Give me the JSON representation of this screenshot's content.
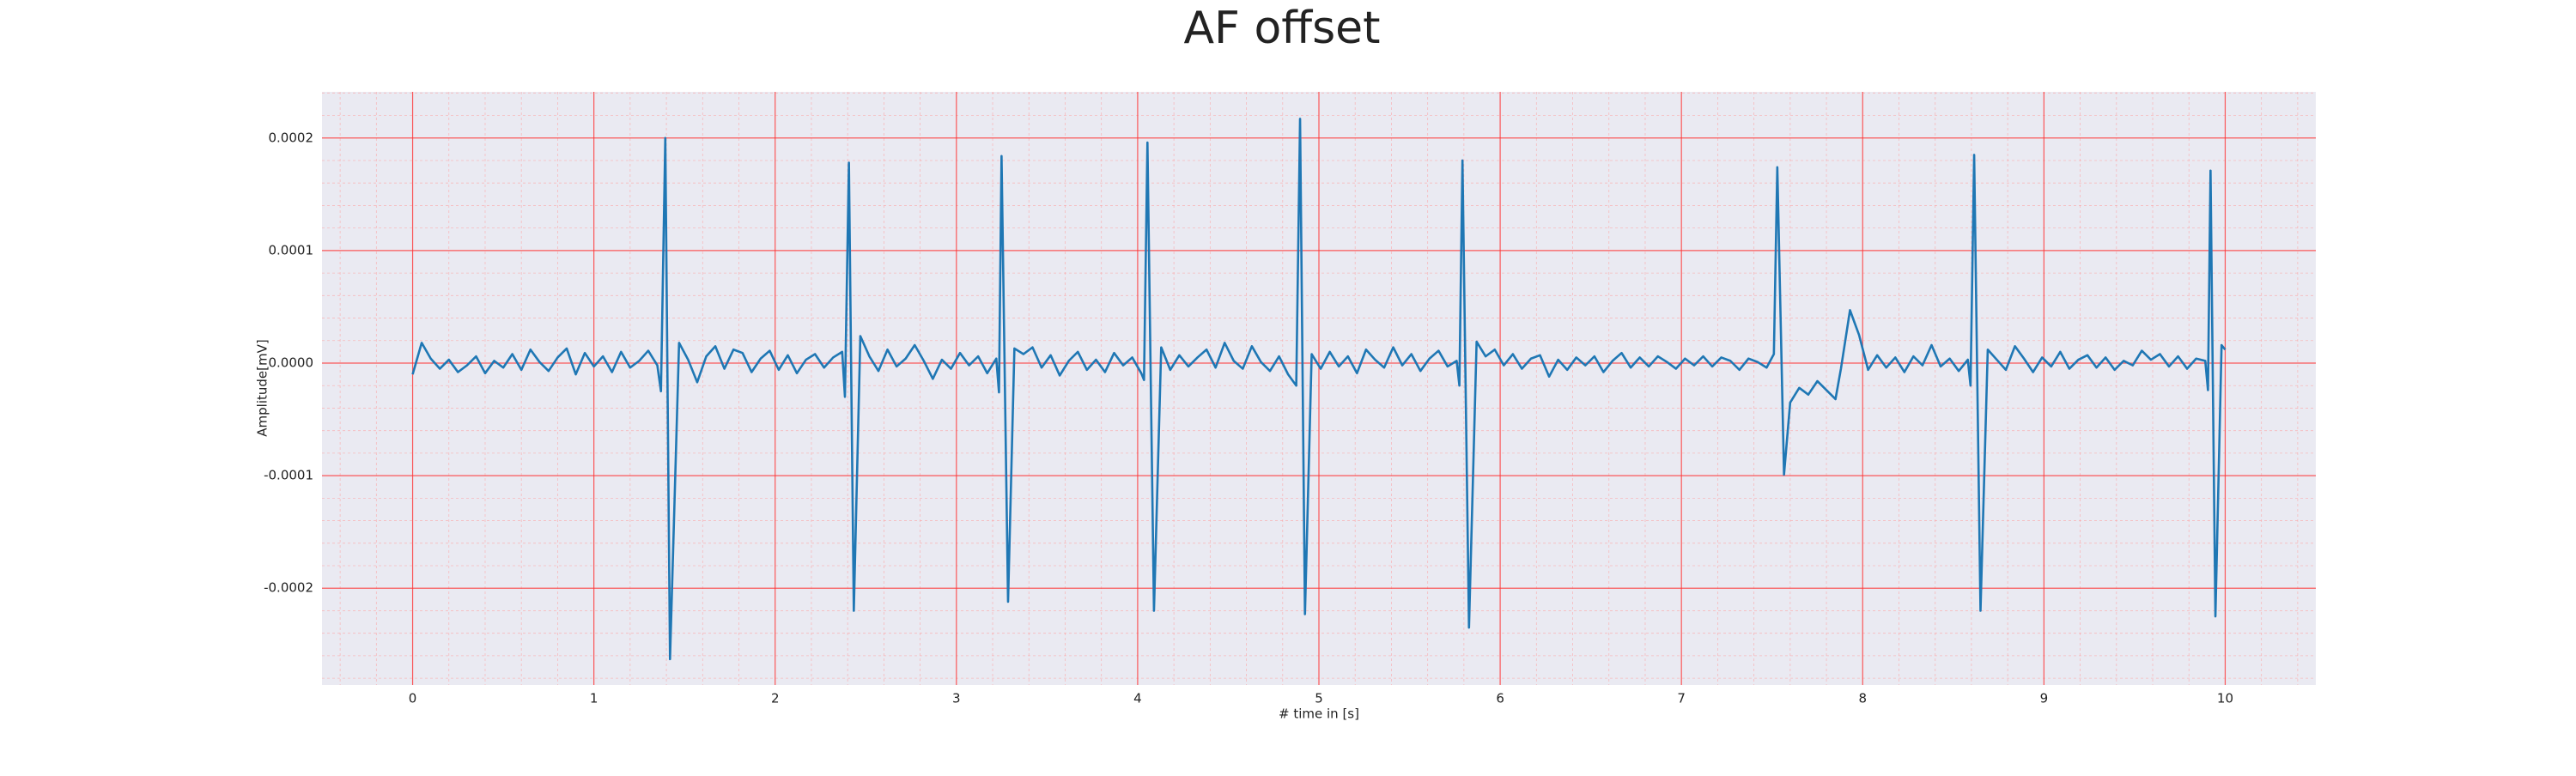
{
  "chart_data": {
    "type": "line",
    "title": "AF offset",
    "xlabel": "# time in [s]",
    "ylabel": "Amplitude[mV]",
    "color": "#1f77b4",
    "grid": true,
    "xlim": [
      -0.5,
      10.5
    ],
    "xticks": [
      0,
      1,
      2,
      3,
      4,
      5,
      6,
      7,
      8,
      9,
      10
    ],
    "ylim": [
      -0.000286,
      0.000241
    ],
    "yticks": [
      0.0002,
      0.0001,
      {
        "value": 0,
        "label": "0.0000"
      },
      -0.0001,
      -0.0002
    ],
    "x": [
      0.0,
      0.05,
      0.1,
      0.15,
      0.2,
      0.25,
      0.3,
      0.35,
      0.4,
      0.45,
      0.5,
      0.55,
      0.6,
      0.65,
      0.7,
      0.75,
      0.8,
      0.85,
      0.9,
      0.95,
      1.0,
      1.05,
      1.1,
      1.15,
      1.2,
      1.25,
      1.3,
      1.35,
      1.37,
      1.394,
      1.42,
      1.47,
      1.52,
      1.57,
      1.62,
      1.67,
      1.72,
      1.77,
      1.82,
      1.87,
      1.92,
      1.97,
      2.02,
      2.07,
      2.12,
      2.17,
      2.22,
      2.27,
      2.32,
      2.37,
      2.385,
      2.407,
      2.434,
      2.47,
      2.52,
      2.57,
      2.62,
      2.67,
      2.72,
      2.77,
      2.82,
      2.87,
      2.92,
      2.97,
      3.02,
      3.07,
      3.12,
      3.17,
      3.22,
      3.235,
      3.249,
      3.285,
      3.32,
      3.37,
      3.42,
      3.47,
      3.52,
      3.57,
      3.62,
      3.67,
      3.72,
      3.77,
      3.82,
      3.87,
      3.92,
      3.97,
      4.02,
      4.035,
      4.054,
      4.09,
      4.13,
      4.18,
      4.23,
      4.28,
      4.33,
      4.38,
      4.43,
      4.48,
      4.53,
      4.58,
      4.63,
      4.68,
      4.73,
      4.78,
      4.83,
      4.875,
      4.896,
      4.923,
      4.96,
      5.01,
      5.06,
      5.11,
      5.16,
      5.21,
      5.26,
      5.31,
      5.36,
      5.41,
      5.46,
      5.51,
      5.56,
      5.61,
      5.66,
      5.71,
      5.76,
      5.775,
      5.792,
      5.828,
      5.87,
      5.92,
      5.97,
      6.02,
      6.07,
      6.12,
      6.17,
      6.22,
      6.27,
      6.32,
      6.37,
      6.42,
      6.47,
      6.52,
      6.57,
      6.62,
      6.67,
      6.72,
      6.77,
      6.82,
      6.87,
      6.92,
      6.97,
      7.02,
      7.07,
      7.12,
      7.17,
      7.22,
      7.27,
      7.32,
      7.37,
      7.42,
      7.47,
      7.51,
      7.529,
      7.566,
      7.6,
      7.65,
      7.7,
      7.75,
      7.8,
      7.85,
      7.88,
      7.93,
      7.98,
      8.03,
      8.08,
      8.13,
      8.18,
      8.23,
      8.28,
      8.33,
      8.38,
      8.43,
      8.48,
      8.53,
      8.58,
      8.595,
      8.615,
      8.65,
      8.69,
      8.74,
      8.79,
      8.84,
      8.89,
      8.94,
      8.99,
      9.04,
      9.09,
      9.14,
      9.19,
      9.24,
      9.29,
      9.34,
      9.39,
      9.44,
      9.49,
      9.54,
      9.59,
      9.64,
      9.69,
      9.74,
      9.79,
      9.84,
      9.89,
      9.905,
      9.919,
      9.946,
      9.98,
      10.0
    ],
    "values": [
      -1e-05,
      1.8e-05,
      4e-06,
      -5e-06,
      3e-06,
      -8e-06,
      -2e-06,
      6e-06,
      -9e-06,
      2e-06,
      -4e-06,
      8e-06,
      -6e-06,
      1.2e-05,
      1e-06,
      -7e-06,
      5e-06,
      1.3e-05,
      -1e-05,
      9e-06,
      -3e-06,
      6e-06,
      -8e-06,
      1e-05,
      -4e-06,
      2e-06,
      1.1e-05,
      -2e-06,
      -2.5e-05,
      0.0002,
      -0.000263,
      1.8e-05,
      3e-06,
      -1.7e-05,
      6e-06,
      1.5e-05,
      -5e-06,
      1.2e-05,
      9e-06,
      -8e-06,
      4e-06,
      1.1e-05,
      -6e-06,
      7e-06,
      -9e-06,
      3e-06,
      8e-06,
      -4e-06,
      5e-06,
      1e-05,
      -3e-05,
      0.000178,
      -0.00022,
      2.4e-05,
      6e-06,
      -7e-06,
      1.2e-05,
      -3e-06,
      4e-06,
      1.6e-05,
      2e-06,
      -1.4e-05,
      3e-06,
      -5e-06,
      9e-06,
      -2e-06,
      6e-06,
      -9e-06,
      4e-06,
      -2.6e-05,
      0.000184,
      -0.000212,
      1.3e-05,
      8e-06,
      1.4e-05,
      -4e-06,
      7e-06,
      -1.1e-05,
      2e-06,
      1e-05,
      -6e-06,
      3e-06,
      -8e-06,
      9e-06,
      -2e-06,
      5e-06,
      -9e-06,
      -1.5e-05,
      0.000196,
      -0.00022,
      1.4e-05,
      -6e-06,
      7e-06,
      -3e-06,
      5e-06,
      1.2e-05,
      -4e-06,
      1.8e-05,
      2e-06,
      -5e-06,
      1.5e-05,
      1e-06,
      -7e-06,
      6e-06,
      -1e-05,
      -2e-05,
      0.000217,
      -0.000223,
      8e-06,
      -5e-06,
      1e-05,
      -3e-06,
      6e-06,
      -9e-06,
      1.2e-05,
      3e-06,
      -4e-06,
      1.4e-05,
      -2e-06,
      8e-06,
      -7e-06,
      4e-06,
      1.1e-05,
      -3e-06,
      2e-06,
      -2e-05,
      0.00018,
      -0.000235,
      1.9e-05,
      6e-06,
      1.2e-05,
      -2e-06,
      8e-06,
      -5e-06,
      4e-06,
      7e-06,
      -1.2e-05,
      3e-06,
      -6e-06,
      5e-06,
      -2e-06,
      6e-06,
      -8e-06,
      2e-06,
      9e-06,
      -4e-06,
      5e-06,
      -3e-06,
      6e-06,
      1e-06,
      -5e-06,
      4e-06,
      -2e-06,
      6e-06,
      -3e-06,
      5e-06,
      2e-06,
      -6e-06,
      4e-06,
      1e-06,
      -4e-06,
      8e-06,
      0.000174,
      -9.9e-05,
      -3.5e-05,
      -2.2e-05,
      -2.8e-05,
      -1.6e-05,
      -2.4e-05,
      -3.2e-05,
      -5e-06,
      4.7e-05,
      2.5e-05,
      -6e-06,
      7e-06,
      -4e-06,
      5e-06,
      -8e-06,
      6e-06,
      -2e-06,
      1.6e-05,
      -3e-06,
      4e-06,
      -7e-06,
      3e-06,
      -2e-05,
      0.000185,
      -0.00022,
      1.2e-05,
      3e-06,
      -6e-06,
      1.5e-05,
      4e-06,
      -8e-06,
      5e-06,
      -3e-06,
      1e-05,
      -5e-06,
      3e-06,
      7e-06,
      -4e-06,
      5e-06,
      -6e-06,
      2e-06,
      -2e-06,
      1.1e-05,
      3e-06,
      8e-06,
      -3e-06,
      6e-06,
      -5e-06,
      4e-06,
      2e-06,
      -2.4e-05,
      0.000171,
      -0.000225,
      1.6e-05,
      1.2e-05
    ]
  }
}
